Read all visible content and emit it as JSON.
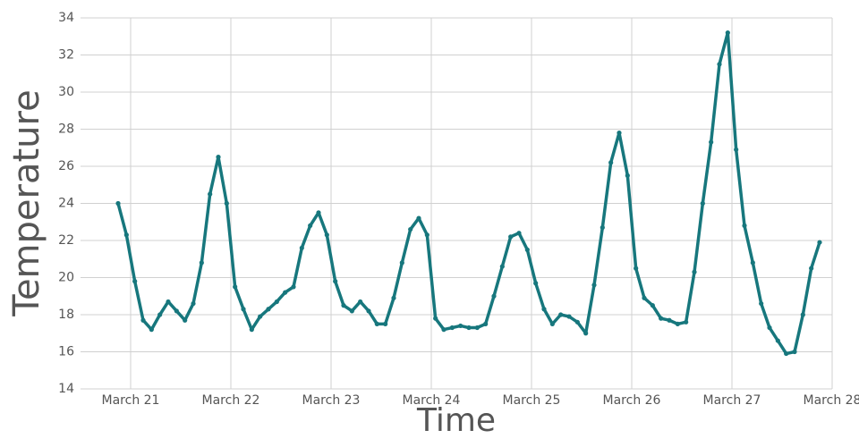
{
  "chart_data": {
    "type": "line",
    "x_label": "Time",
    "y_label": "Temperature",
    "x": [
      -3,
      -1,
      1,
      3,
      5,
      7,
      9,
      11,
      13,
      15,
      17,
      19,
      21,
      23,
      25,
      27,
      29,
      31,
      33,
      35,
      37,
      39,
      41,
      43,
      45,
      47,
      49,
      51,
      53,
      55,
      57,
      59,
      61,
      63,
      65,
      67,
      69,
      71,
      73,
      75,
      77,
      79,
      81,
      83,
      85,
      87,
      89,
      91,
      93,
      95,
      97,
      99,
      101,
      103,
      105,
      107,
      109,
      111,
      113,
      115,
      117,
      119,
      121,
      123,
      125,
      127,
      129,
      131,
      133,
      135,
      137,
      139,
      141,
      143,
      145,
      147,
      149,
      151,
      153,
      155,
      157,
      159,
      161,
      163,
      165
    ],
    "values": [
      24.0,
      22.3,
      19.8,
      17.7,
      17.2,
      18.0,
      18.7,
      18.2,
      17.7,
      18.6,
      20.8,
      24.5,
      26.5,
      24.0,
      19.5,
      18.3,
      17.2,
      17.9,
      18.3,
      18.7,
      19.2,
      19.5,
      21.6,
      22.8,
      23.5,
      22.3,
      19.8,
      18.5,
      18.2,
      18.7,
      18.2,
      17.5,
      17.5,
      18.9,
      20.8,
      22.6,
      23.2,
      22.3,
      17.8,
      17.2,
      17.3,
      17.4,
      17.3,
      17.3,
      17.5,
      19.0,
      20.6,
      22.2,
      22.4,
      21.5,
      19.7,
      18.3,
      17.5,
      18.0,
      17.9,
      17.6,
      17.0,
      19.6,
      22.7,
      26.2,
      27.8,
      25.5,
      20.5,
      18.9,
      18.5,
      17.8,
      17.7,
      17.5,
      17.6,
      20.3,
      24.0,
      27.3,
      31.5,
      33.2,
      26.9,
      22.8,
      20.8,
      18.6,
      17.3,
      16.6,
      15.9,
      16.0,
      18.0,
      20.5,
      21.9
    ],
    "color": "#17777d",
    "xlim": [
      -12,
      168
    ],
    "xticks": [
      {
        "value": 0,
        "label": "March 21"
      },
      {
        "value": 24,
        "label": "March 22"
      },
      {
        "value": 48,
        "label": "March 23"
      },
      {
        "value": 72,
        "label": "March 24"
      },
      {
        "value": 96,
        "label": "March 25"
      },
      {
        "value": 120,
        "label": "March 26"
      },
      {
        "value": 144,
        "label": "March 27"
      },
      {
        "value": 168,
        "label": "March 28"
      }
    ],
    "ylim": [
      14,
      34
    ],
    "yticks": [
      14,
      16,
      18,
      20,
      22,
      24,
      26,
      28,
      30,
      32,
      34
    ],
    "grid": true
  }
}
